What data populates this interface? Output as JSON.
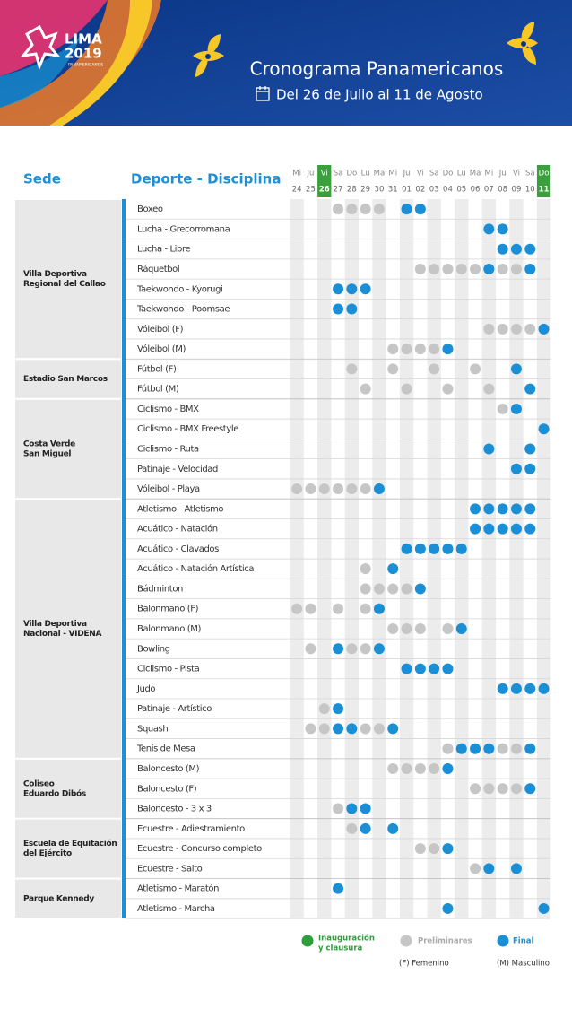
{
  "header": {
    "logo": {
      "line1": "LIMA",
      "line2": "2019",
      "line3": "PANAMERICANOS"
    },
    "title": "Cronograma Panamericanos",
    "subtitle": "Del 26 de Julio al 11 de Agosto"
  },
  "table": {
    "col_sede": "Sede",
    "col_discipline": "Deporte - Disciplina",
    "days": [
      {
        "dow": "Mi",
        "num": "24"
      },
      {
        "dow": "Ju",
        "num": "25"
      },
      {
        "dow": "Vi",
        "num": "26",
        "highlight": true
      },
      {
        "dow": "Sa",
        "num": "27"
      },
      {
        "dow": "Do",
        "num": "28"
      },
      {
        "dow": "Lu",
        "num": "29"
      },
      {
        "dow": "Ma",
        "num": "30"
      },
      {
        "dow": "Mi",
        "num": "31"
      },
      {
        "dow": "Ju",
        "num": "01"
      },
      {
        "dow": "Vi",
        "num": "02"
      },
      {
        "dow": "Sa",
        "num": "03"
      },
      {
        "dow": "Do",
        "num": "04"
      },
      {
        "dow": "Lu",
        "num": "05"
      },
      {
        "dow": "Ma",
        "num": "06"
      },
      {
        "dow": "Mi",
        "num": "07"
      },
      {
        "dow": "Ju",
        "num": "08"
      },
      {
        "dow": "Vi",
        "num": "09"
      },
      {
        "dow": "Sa",
        "num": "10"
      },
      {
        "dow": "Do",
        "num": "11",
        "highlight": true
      }
    ],
    "venues": [
      {
        "name_lines": [
          "Villa Deportiva",
          "Regional del Callao"
        ],
        "rows": [
          {
            "discipline": "Boxeo",
            "preliminares": [
              "27",
              "28",
              "29",
              "30"
            ],
            "final": [
              "01",
              "02"
            ]
          },
          {
            "discipline": "Lucha - Grecorromana",
            "preliminares": [],
            "final": [
              "07",
              "08"
            ]
          },
          {
            "discipline": "Lucha - Libre",
            "preliminares": [],
            "final": [
              "08",
              "09",
              "10"
            ]
          },
          {
            "discipline": "Ráquetbol",
            "preliminares": [
              "02",
              "03",
              "04",
              "05",
              "06",
              "08",
              "09"
            ],
            "final": [
              "07",
              "10"
            ]
          },
          {
            "discipline": "Taekwondo - Kyorugi",
            "preliminares": [],
            "final": [
              "27",
              "28",
              "29"
            ]
          },
          {
            "discipline": "Taekwondo - Poomsae",
            "preliminares": [],
            "final": [
              "27",
              "28"
            ]
          },
          {
            "discipline": "Vóleibol (F)",
            "preliminares": [
              "07",
              "08",
              "09",
              "10"
            ],
            "final": [
              "11"
            ]
          },
          {
            "discipline": "Vóleibol (M)",
            "preliminares": [
              "31",
              "01",
              "02",
              "03"
            ],
            "final": [
              "04"
            ]
          }
        ]
      },
      {
        "name_lines": [
          "Estadio San Marcos"
        ],
        "rows": [
          {
            "discipline": "Fútbol (F)",
            "preliminares": [
              "28",
              "31",
              "03",
              "06"
            ],
            "final": [
              "09"
            ]
          },
          {
            "discipline": "Fútbol (M)",
            "preliminares": [
              "29",
              "01",
              "04",
              "07"
            ],
            "final": [
              "10"
            ]
          }
        ]
      },
      {
        "name_lines": [
          "Costa Verde",
          "San Miguel"
        ],
        "rows": [
          {
            "discipline": "Ciclismo - BMX",
            "preliminares": [
              "08"
            ],
            "final": [
              "09"
            ]
          },
          {
            "discipline": "Ciclismo - BMX Freestyle",
            "preliminares": [],
            "final": [
              "11"
            ]
          },
          {
            "discipline": "Ciclismo - Ruta",
            "preliminares": [],
            "final": [
              "07",
              "10"
            ]
          },
          {
            "discipline": "Patinaje - Velocidad",
            "preliminares": [],
            "final": [
              "09",
              "10"
            ]
          },
          {
            "discipline": "Vóleibol - Playa",
            "preliminares": [
              "24",
              "25",
              "26",
              "27",
              "28",
              "29"
            ],
            "final": [
              "30"
            ]
          }
        ]
      },
      {
        "name_lines": [
          "Villa Deportiva",
          "Nacional - VIDENA"
        ],
        "rows": [
          {
            "discipline": "Atletismo - Atletismo",
            "preliminares": [],
            "final": [
              "06",
              "07",
              "08",
              "09",
              "10"
            ]
          },
          {
            "discipline": "Acuático - Natación",
            "preliminares": [],
            "final": [
              "06",
              "07",
              "08",
              "09",
              "10"
            ]
          },
          {
            "discipline": "Acuático - Clavados",
            "preliminares": [],
            "final": [
              "01",
              "02",
              "03",
              "04",
              "05"
            ]
          },
          {
            "discipline": "Acuático - Natación Artística",
            "preliminares": [
              "29"
            ],
            "final": [
              "31"
            ]
          },
          {
            "discipline": "Bádminton",
            "preliminares": [
              "29",
              "30",
              "31",
              "01"
            ],
            "final": [
              "02"
            ]
          },
          {
            "discipline": "Balonmano (F)",
            "preliminares": [
              "24",
              "25",
              "27",
              "29"
            ],
            "final": [
              "30"
            ]
          },
          {
            "discipline": "Balonmano (M)",
            "preliminares": [
              "31",
              "01",
              "02",
              "04"
            ],
            "final": [
              "05"
            ]
          },
          {
            "discipline": "Bowling",
            "preliminares": [
              "25",
              "28",
              "29"
            ],
            "final": [
              "27",
              "30"
            ]
          },
          {
            "discipline": "Ciclismo - Pista",
            "preliminares": [],
            "final": [
              "01",
              "02",
              "03",
              "04"
            ]
          },
          {
            "discipline": "Judo",
            "preliminares": [],
            "final": [
              "08",
              "09",
              "10",
              "11"
            ]
          },
          {
            "discipline": "Patinaje - Artístico",
            "preliminares": [
              "26"
            ],
            "final": [
              "27"
            ]
          },
          {
            "discipline": "Squash",
            "preliminares": [
              "25",
              "26",
              "29",
              "30"
            ],
            "final": [
              "27",
              "28",
              "31"
            ]
          },
          {
            "discipline": "Tenis de Mesa",
            "preliminares": [
              "04",
              "08",
              "09"
            ],
            "final": [
              "05",
              "06",
              "07",
              "10"
            ]
          }
        ]
      },
      {
        "name_lines": [
          "Coliseo",
          "Eduardo Dibós"
        ],
        "rows": [
          {
            "discipline": "Baloncesto (M)",
            "preliminares": [
              "31",
              "01",
              "02",
              "03"
            ],
            "final": [
              "04"
            ]
          },
          {
            "discipline": "Baloncesto (F)",
            "preliminares": [
              "06",
              "07",
              "08",
              "09"
            ],
            "final": [
              "10"
            ]
          },
          {
            "discipline": "Baloncesto - 3 x 3",
            "preliminares": [
              "27"
            ],
            "final": [
              "28",
              "29"
            ]
          }
        ]
      },
      {
        "name_lines": [
          "Escuela de Equitación",
          "del Ejército"
        ],
        "rows": [
          {
            "discipline": "Ecuestre - Adiestramiento",
            "preliminares": [
              "28"
            ],
            "final": [
              "29",
              "31"
            ]
          },
          {
            "discipline": "Ecuestre - Concurso completo",
            "preliminares": [
              "02",
              "03"
            ],
            "final": [
              "04"
            ]
          },
          {
            "discipline": "Ecuestre - Salto",
            "preliminares": [
              "06"
            ],
            "final": [
              "07",
              "09"
            ]
          }
        ]
      },
      {
        "name_lines": [
          "Parque Kennedy"
        ],
        "rows": [
          {
            "discipline": "Atletismo - Maratón",
            "preliminares": [],
            "final": [
              "27"
            ]
          },
          {
            "discipline": "Atletismo - Marcha",
            "preliminares": [],
            "final": [
              "04",
              "11"
            ]
          }
        ]
      }
    ]
  },
  "legend": {
    "opening": [
      "Inauguración",
      "y clausura"
    ],
    "preliminary": "Preliminares",
    "final": "Final",
    "female": "(F) Femenino",
    "male": "(M) Masculino"
  }
}
